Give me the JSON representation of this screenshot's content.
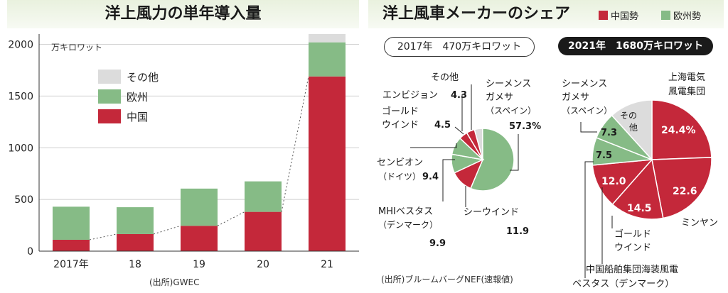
{
  "left": {
    "title": "洋上風力の単年導入量",
    "unit": "万キロワット",
    "source": "(出所)GWEC"
  },
  "right": {
    "title": "洋上風車メーカーのシェア",
    "legend": [
      {
        "label": "中国勢",
        "color": "#c4283a"
      },
      {
        "label": "欧州勢",
        "color": "#86bb86"
      }
    ],
    "pill_2017": "2017年　470万キロワット",
    "pill_2021": "2021年　1680万キロワット",
    "source": "(出所)ブルームバーグNEF(速報値)"
  },
  "colors": {
    "china": "#c4283a",
    "europe": "#86bb86",
    "other": "#dcdcdc"
  },
  "chart_data": [
    {
      "type": "bar",
      "title": "洋上風力の単年導入量",
      "ylabel": "万キロワット",
      "categories": [
        "2017年",
        "18",
        "19",
        "20",
        "21"
      ],
      "series": [
        {
          "name": "中国",
          "values": [
            110,
            165,
            245,
            380,
            1690
          ]
        },
        {
          "name": "欧州",
          "values": [
            320,
            260,
            360,
            295,
            330
          ]
        },
        {
          "name": "その他",
          "values": [
            0,
            0,
            0,
            0,
            80
          ]
        }
      ],
      "ylim": [
        0,
        2100
      ],
      "yticks": [
        0,
        500,
        1000,
        1500,
        2000
      ],
      "stacked": true,
      "legend_position": "upper-left"
    },
    {
      "type": "pie",
      "title": "2017年　470万キロワット",
      "slices": [
        {
          "name": "その他",
          "value": 4.3,
          "group": "other"
        },
        {
          "name": "シーメンスガメサ（スペイン）",
          "value": 57.3,
          "group": "europe"
        },
        {
          "name": "シーウインド",
          "value": 11.9,
          "group": "china"
        },
        {
          "name": "MHIベスタス（デンマーク）",
          "value": 9.9,
          "group": "europe"
        },
        {
          "name": "センビオン（ドイツ）",
          "value": 9.4,
          "group": "europe"
        },
        {
          "name": "ゴールドウインド",
          "value": 4.5,
          "group": "china"
        },
        {
          "name": "エンビジョン",
          "value": 4.3,
          "group": "china"
        }
      ]
    },
    {
      "type": "pie",
      "title": "2021年　1680万キロワット",
      "slices": [
        {
          "name": "上海電気風電集団",
          "value": 24.4,
          "group": "china"
        },
        {
          "name": "ミンヤン",
          "value": 22.6,
          "group": "china"
        },
        {
          "name": "ゴールドウインド",
          "value": 14.5,
          "group": "china"
        },
        {
          "name": "中国船舶集団海装風電",
          "value": 12.0,
          "group": "china"
        },
        {
          "name": "ベスタス（デンマーク）",
          "value": 7.5,
          "group": "europe"
        },
        {
          "name": "シーメンスガメサ（スペイン）",
          "value": 7.3,
          "group": "europe"
        },
        {
          "name": "その他",
          "value": 11.7,
          "group": "other"
        }
      ]
    }
  ],
  "labels_2017": {
    "sonota": "その他",
    "envision": "エンビジョン",
    "envision_val": "4.3",
    "gold_1": "ゴールド",
    "gold_2": "ウインド",
    "gold_val": "4.5",
    "siemens_1": "シーメンス",
    "siemens_2": "ガメサ",
    "siemens_3": "（スペイン）",
    "siemens_val": "57.3%",
    "senvion_1": "センビオン",
    "senvion_2": "（ドイツ）",
    "senvion_val": "9.4",
    "mhi_1": "MHIベスタス",
    "mhi_2": "（デンマーク）",
    "mhi_val": "9.9",
    "seawind": "シーウインド",
    "seawind_val": "11.9"
  },
  "labels_2021": {
    "siemens_1": "シーメンス",
    "siemens_2": "ガメサ",
    "siemens_3": "（スペイン）",
    "sonota_1": "その",
    "sonota_2": "他",
    "shanghai_1": "上海電気",
    "shanghai_2": "風電集団",
    "shanghai_val": "24.4%",
    "mingyang": "ミンヤン",
    "mingyang_val": "22.6",
    "gold_1": "ゴールド",
    "gold_2": "ウインド",
    "gold_val": "14.5",
    "csic_val": "12.0",
    "csic_name": "中国船舶集団海装風電",
    "vestas_name": "ベスタス（デンマーク）",
    "vestas_val": "7.5",
    "siemens_val": "7.3"
  }
}
